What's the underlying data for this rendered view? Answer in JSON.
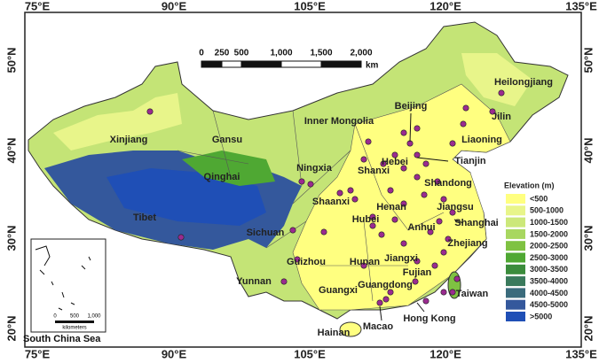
{
  "axes": {
    "top": [
      "75°E",
      "90°E",
      "105°E",
      "120°E",
      "135°E"
    ],
    "bottom": [
      "75°E",
      "90°E",
      "105°E",
      "120°E",
      "135°E"
    ],
    "left": [
      "50°N",
      "40°N",
      "30°N",
      "20°N"
    ],
    "right": [
      "50°N",
      "40°N",
      "30°N",
      "20°N"
    ]
  },
  "scale_bar": {
    "ticks": [
      "0",
      "250",
      "500",
      "1,000",
      "1,500",
      "2,000"
    ],
    "unit": "km"
  },
  "legend": {
    "title": "Elevation (m)",
    "items": [
      {
        "label": "<500",
        "color": "#ffff80"
      },
      {
        "label": "500-1000",
        "color": "#e8f58a"
      },
      {
        "label": "1000-1500",
        "color": "#cce87a"
      },
      {
        "label": "1500-2000",
        "color": "#a8d760"
      },
      {
        "label": "2000-2500",
        "color": "#7fc242"
      },
      {
        "label": "2500-3000",
        "color": "#4fa833"
      },
      {
        "label": "3000-3500",
        "color": "#3b8c3c"
      },
      {
        "label": "3500-4000",
        "color": "#3a7a5c"
      },
      {
        "label": "4000-4500",
        "color": "#3a6b7c"
      },
      {
        "label": "4500-5000",
        "color": "#34589c"
      },
      {
        "label": ">5000",
        "color": "#1f4fb6"
      }
    ]
  },
  "labels": [
    "Heilongjiang",
    "Jilin",
    "Liaoning",
    "Beijing",
    "Inner Mongolia",
    "Hebei",
    "Tianjin",
    "Xinjiang",
    "Gansu",
    "Ningxia",
    "Shanxi",
    "Shandong",
    "Qinghai",
    "Shaanxi",
    "Henan",
    "Jiangsu",
    "Shanghai",
    "Hubei",
    "Anhui",
    "Tibet",
    "Sichuan",
    "Zhejiang",
    "Guizhou",
    "Hunan",
    "Jiangxi",
    "Fujian",
    "Yunnan",
    "Guangxi",
    "Guangdong",
    "Taiwan",
    "Hong Kong",
    "Macao",
    "Hainan"
  ],
  "inset": {
    "title": "South China Sea",
    "scale": [
      "0",
      "500",
      "1,000"
    ],
    "unit": "kilometers"
  }
}
